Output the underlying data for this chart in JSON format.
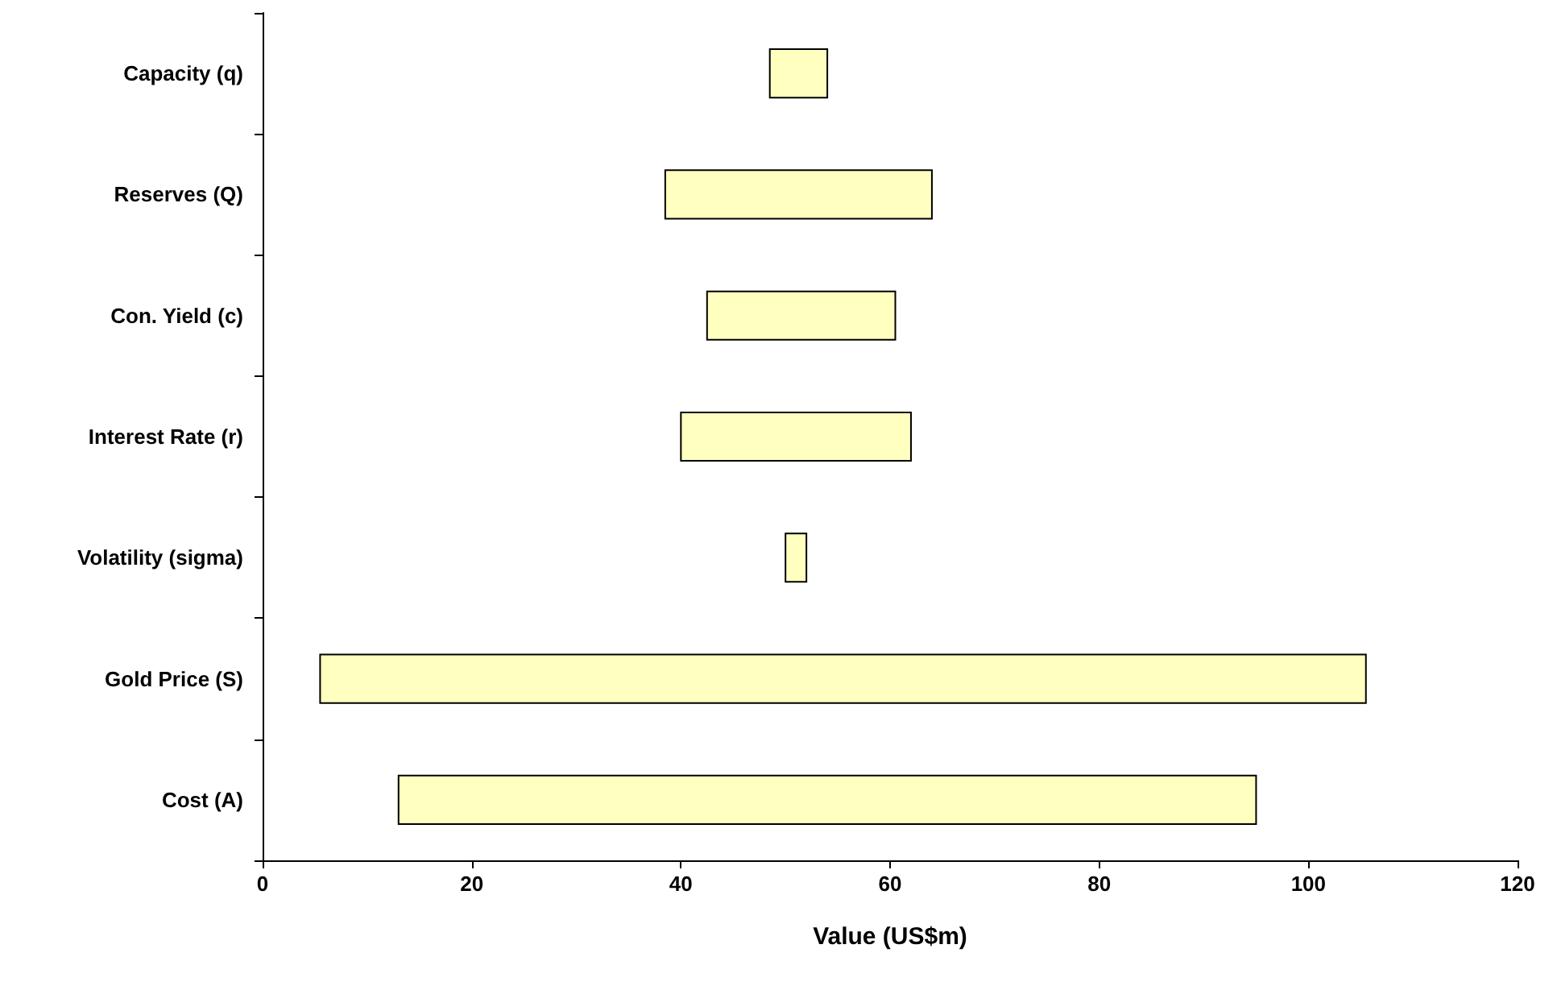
{
  "chart_data": {
    "type": "bar",
    "orientation": "horizontal",
    "xlabel": "Value (US$m)",
    "categories": [
      "Capacity (q)",
      "Reserves (Q)",
      "Con. Yield (c)",
      "Interest Rate (r)",
      "Volatility (sigma)",
      "Gold Price (S)",
      "Cost (A)"
    ],
    "base": [
      48.5,
      38.5,
      42.5,
      40,
      50,
      5.5,
      13
    ],
    "values": [
      5.5,
      25.5,
      18,
      22,
      2,
      100,
      82
    ],
    "color": "#ffffc0",
    "xlim": [
      0,
      120
    ],
    "xticks": [
      0,
      20,
      40,
      60,
      80,
      100,
      120
    ]
  }
}
